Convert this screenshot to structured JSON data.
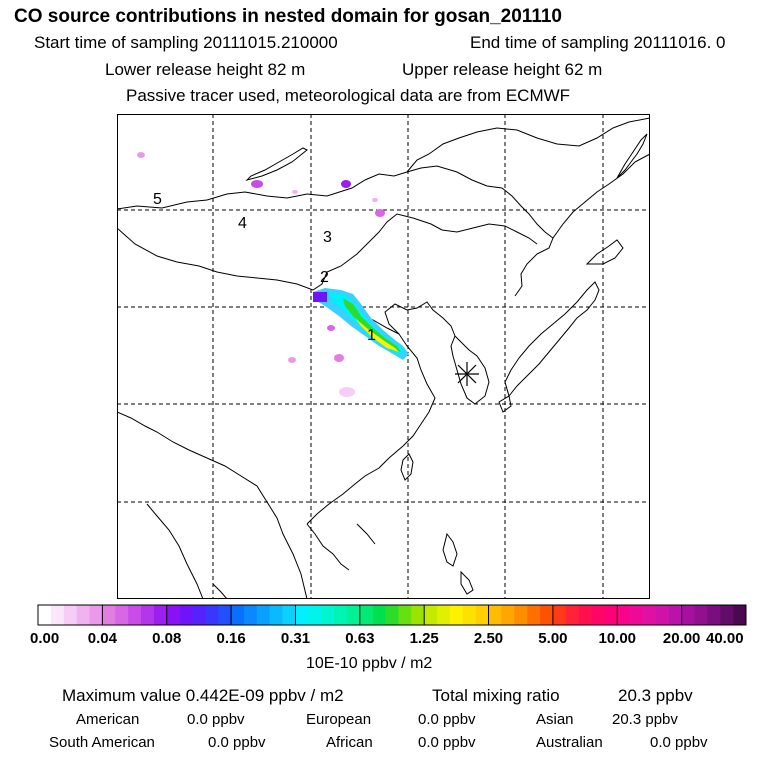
{
  "header": {
    "title": "CO  source contributions in nested domain for gosan_201110",
    "start_label": "Start time of sampling 20111015.210000",
    "end_label": "End time of sampling 20111016.     0",
    "lower_label": "Lower release height   82 m",
    "upper_label": "Upper release height   62 m",
    "note": "Passive tracer used, meteorological data are from ECMWF"
  },
  "map": {
    "frame_color": "#000000",
    "grid_color": "#000000",
    "receptor_marker": "asterisk-icon",
    "labels": [
      "1",
      "2",
      "3",
      "4",
      "5"
    ]
  },
  "colorbar": {
    "ticks": [
      "0.00",
      "0.04",
      "0.08",
      "0.16",
      "0.31",
      "0.63",
      "1.25",
      "2.50",
      "5.00",
      "10.00",
      "20.00",
      "40.00"
    ],
    "colors": [
      [
        "#ffffff",
        "#fbe6fb",
        "#f6cdf6",
        "#f0b3f0",
        "#ea99ea"
      ],
      [
        "#e27ee2",
        "#d866e6",
        "#c94ce9",
        "#b535ec",
        "#9e1df0"
      ],
      [
        "#8a10f5",
        "#6f14fa",
        "#5322fc",
        "#3a36fd",
        "#2250fe"
      ],
      [
        "#0a6ffe",
        "#0a88fe",
        "#0aa1fe",
        "#0abafe",
        "#0ad2fe"
      ],
      [
        "#00f0ff",
        "#00f5ea",
        "#00f5d0",
        "#00f4b3",
        "#00f295"
      ],
      [
        "#00ea74",
        "#00e04f",
        "#2ddc2a",
        "#66e010",
        "#9ae400"
      ],
      [
        "#c4ea00",
        "#e2f000",
        "#fff200",
        "#ffe100",
        "#ffcf00"
      ],
      [
        "#ffbc00",
        "#ffa600",
        "#ff8d00",
        "#ff7000",
        "#ff5200"
      ],
      [
        "#ff3a18",
        "#ff2238",
        "#ff0e50",
        "#ff0566",
        "#ff0078"
      ],
      [
        "#f8048a",
        "#ee0a98",
        "#e010a4",
        "#d012aa",
        "#bb12aa"
      ],
      [
        "#a610a0",
        "#901090",
        "#7a0e7e",
        "#630b68",
        "#4a0850"
      ]
    ],
    "unit_label": "10E-10 ppbv / m2"
  },
  "summary": {
    "max_label": "Maximum value  0.442E-09 ppbv / m2",
    "total_label": "Total mixing ratio",
    "total_value": "20.3 ppbv",
    "regions": [
      {
        "name": "American",
        "value": "0.0 ppbv"
      },
      {
        "name": "European",
        "value": "0.0 ppbv"
      },
      {
        "name": "Asian",
        "value": "20.3 ppbv"
      },
      {
        "name": "South American",
        "value": "0.0 ppbv"
      },
      {
        "name": "African",
        "value": "0.0 ppbv"
      },
      {
        "name": "Australian",
        "value": "0.0 ppbv"
      }
    ]
  }
}
